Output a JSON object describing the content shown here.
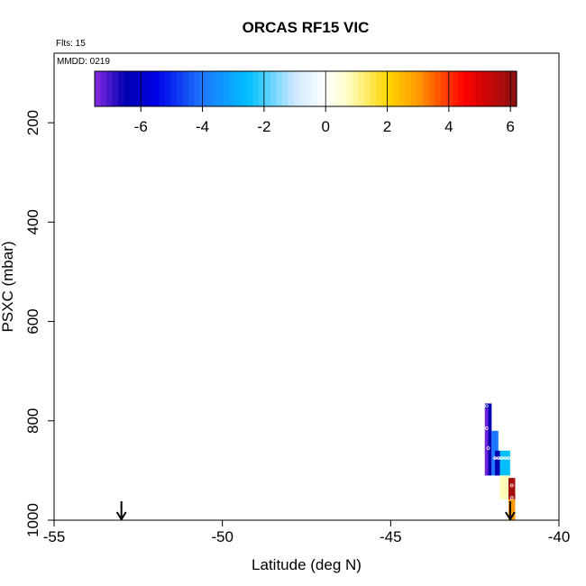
{
  "chart_data": {
    "type": "heatmap",
    "title": "ORCAS RF15 VIC",
    "flights_label": "Flts: 15",
    "mmdd_label": "MMDD: 0219",
    "xlabel": "Latitude (deg N)",
    "ylabel": "PSXC (mbar)",
    "xlim": [
      -55,
      -40
    ],
    "ylim": [
      1000,
      60
    ],
    "x_ticks": [
      -55,
      -50,
      -45,
      -40
    ],
    "x_tick_labels": [
      "-55",
      "-50",
      "-45",
      "-40"
    ],
    "y_ticks": [
      200,
      400,
      600,
      800,
      1000
    ],
    "y_tick_labels": [
      "200",
      "400",
      "600",
      "800",
      "1000"
    ],
    "colorbar": {
      "range": [
        -7.5,
        6.2
      ],
      "ticks": [
        -6,
        -4,
        -2,
        0,
        2,
        4,
        6
      ],
      "tick_labels": [
        "-6",
        "-4",
        "-2",
        "0",
        "2",
        "4",
        "6"
      ],
      "stops": [
        {
          "v": -7.5,
          "c": "#8a2be2"
        },
        {
          "v": -6.5,
          "c": "#0000b0"
        },
        {
          "v": -5.5,
          "c": "#0000e6"
        },
        {
          "v": -4.0,
          "c": "#1e78ff"
        },
        {
          "v": -2.5,
          "c": "#00bfff"
        },
        {
          "v": -1.0,
          "c": "#cfe9ff"
        },
        {
          "v": 0.0,
          "c": "#ffffff"
        },
        {
          "v": 0.7,
          "c": "#ffffc8"
        },
        {
          "v": 2.0,
          "c": "#ffd700"
        },
        {
          "v": 3.0,
          "c": "#ff9900"
        },
        {
          "v": 4.5,
          "c": "#ff0000"
        },
        {
          "v": 6.2,
          "c": "#8b1010"
        }
      ]
    },
    "cells": [
      {
        "x0": -42.2,
        "x1": -42.0,
        "p0": 765,
        "p1": 910,
        "value": -6.5
      },
      {
        "x0": -42.2,
        "x1": -42.1,
        "p0": 775,
        "p1": 910,
        "value": -7.3
      },
      {
        "x0": -42.0,
        "x1": -41.8,
        "p0": 820,
        "p1": 910,
        "value": -4.0
      },
      {
        "x0": -41.9,
        "x1": -41.75,
        "p0": 860,
        "p1": 910,
        "value": -6.5
      },
      {
        "x0": -41.75,
        "x1": -41.45,
        "p0": 860,
        "p1": 910,
        "value": -2.5
      },
      {
        "x0": -41.75,
        "x1": -41.45,
        "p0": 910,
        "p1": 958,
        "value": 0.8
      },
      {
        "x0": -41.5,
        "x1": -41.3,
        "p0": 915,
        "p1": 958,
        "value": 5.8
      },
      {
        "x0": -41.5,
        "x1": -41.3,
        "p0": 958,
        "p1": 1000,
        "value": 3.0
      }
    ],
    "track_points": [
      {
        "x": -42.15,
        "p": 770
      },
      {
        "x": -42.15,
        "p": 815
      },
      {
        "x": -42.1,
        "p": 855
      },
      {
        "x": -41.9,
        "p": 875
      },
      {
        "x": -41.8,
        "p": 875
      },
      {
        "x": -41.7,
        "p": 875
      },
      {
        "x": -41.6,
        "p": 875
      },
      {
        "x": -41.5,
        "p": 875
      },
      {
        "x": -41.4,
        "p": 930
      },
      {
        "x": -41.4,
        "p": 955
      }
    ],
    "arrows": [
      {
        "x": -53.0
      },
      {
        "x": -41.45
      }
    ]
  }
}
